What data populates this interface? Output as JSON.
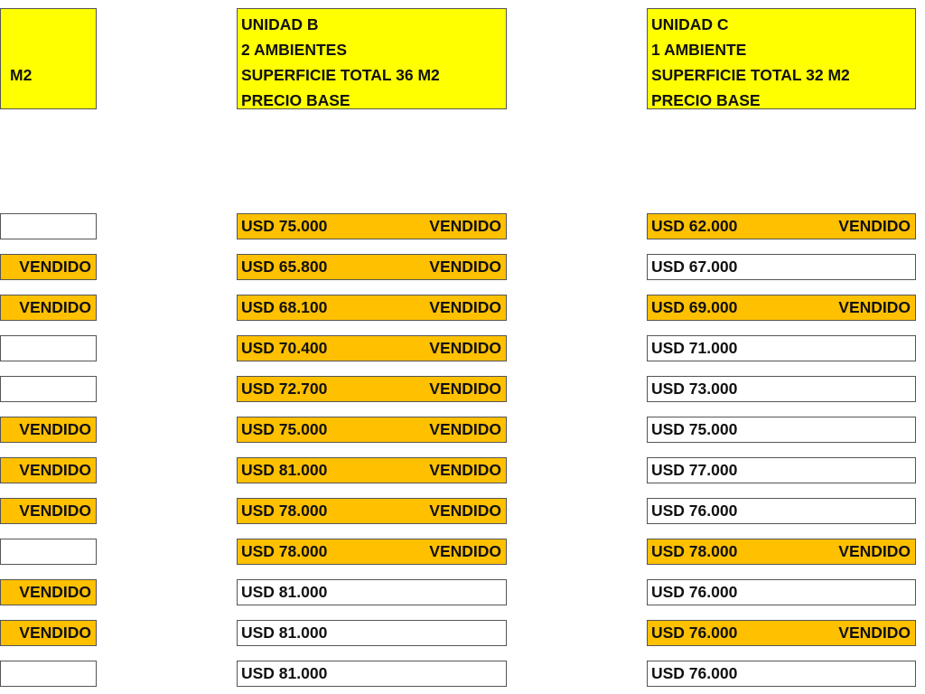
{
  "colors": {
    "header": "#ffff00",
    "sold": "#ffc000",
    "available": "#ffffff"
  },
  "sold_label": "VENDIDO",
  "units": [
    {
      "id": "A",
      "header": [
        "",
        "",
        "M2",
        ""
      ],
      "rows": [
        {
          "price": "",
          "sold": false
        },
        {
          "price": "",
          "sold": true
        },
        {
          "price": "",
          "sold": true
        },
        {
          "price": "",
          "sold": false
        },
        {
          "price": "",
          "sold": false
        },
        {
          "price": "",
          "sold": true
        },
        {
          "price": "",
          "sold": true
        },
        {
          "price": "",
          "sold": true
        },
        {
          "price": "",
          "sold": false
        },
        {
          "price": "",
          "sold": true
        },
        {
          "price": "",
          "sold": true
        },
        {
          "price": "",
          "sold": false
        }
      ]
    },
    {
      "id": "B",
      "header": [
        "UNIDAD B",
        "2 AMBIENTES",
        "SUPERFICIE TOTAL 36 M2",
        "PRECIO BASE"
      ],
      "rows": [
        {
          "price": "USD 75.000",
          "sold": true
        },
        {
          "price": "USD 65.800",
          "sold": true
        },
        {
          "price": "USD 68.100",
          "sold": true
        },
        {
          "price": "USD 70.400",
          "sold": true
        },
        {
          "price": "USD 72.700",
          "sold": true
        },
        {
          "price": "USD 75.000",
          "sold": true
        },
        {
          "price": "USD 81.000",
          "sold": true
        },
        {
          "price": "USD 78.000",
          "sold": true
        },
        {
          "price": "USD 78.000",
          "sold": true
        },
        {
          "price": "USD 81.000",
          "sold": false
        },
        {
          "price": "USD 81.000",
          "sold": false
        },
        {
          "price": "USD 81.000",
          "sold": false
        }
      ]
    },
    {
      "id": "C",
      "header": [
        "UNIDAD C",
        "1 AMBIENTE",
        "SUPERFICIE TOTAL 32 M2",
        "PRECIO BASE"
      ],
      "rows": [
        {
          "price": "USD 62.000",
          "sold": true
        },
        {
          "price": "USD 67.000",
          "sold": false
        },
        {
          "price": "USD 69.000",
          "sold": true
        },
        {
          "price": "USD 71.000",
          "sold": false
        },
        {
          "price": "USD 73.000",
          "sold": false
        },
        {
          "price": "USD 75.000",
          "sold": false
        },
        {
          "price": "USD 77.000",
          "sold": false
        },
        {
          "price": "USD 76.000",
          "sold": false
        },
        {
          "price": "USD 78.000",
          "sold": true
        },
        {
          "price": "USD 76.000",
          "sold": false
        },
        {
          "price": "USD 76.000",
          "sold": true
        },
        {
          "price": "USD 76.000",
          "sold": false
        }
      ]
    }
  ]
}
